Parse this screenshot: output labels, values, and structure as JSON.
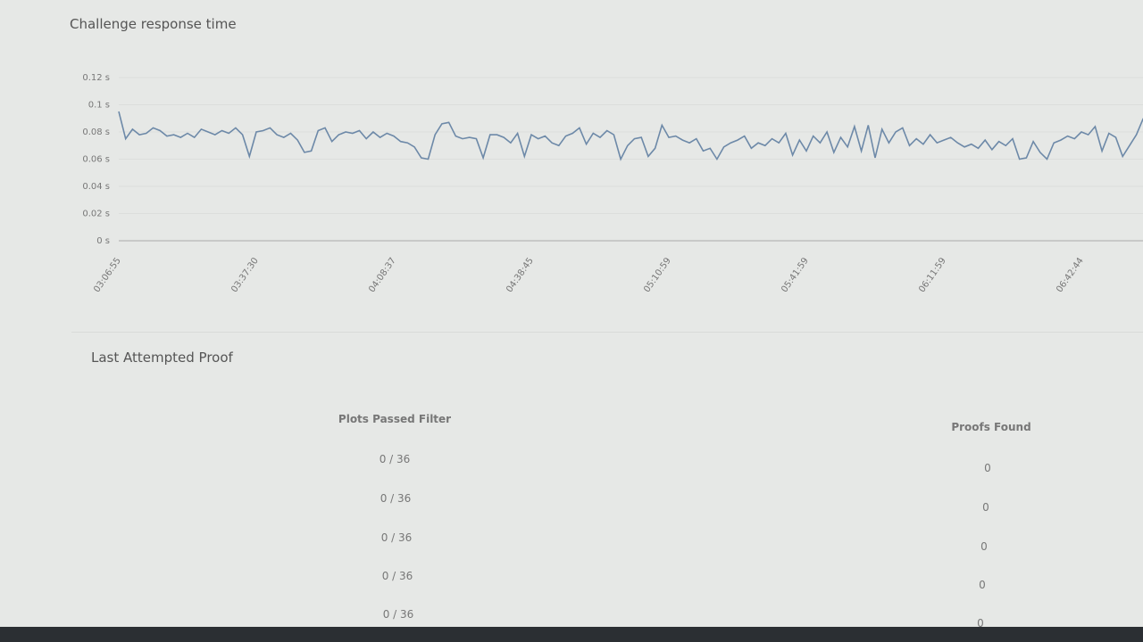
{
  "chart_data": {
    "type": "line",
    "title": "Challenge response time",
    "categories": [
      "03:06:55",
      null,
      null,
      null,
      null,
      null,
      null,
      null,
      null,
      null,
      null,
      null,
      null,
      null,
      null,
      null,
      null,
      null,
      null,
      null,
      "03:37:30",
      null,
      null,
      null,
      null,
      null,
      null,
      null,
      null,
      null,
      null,
      null,
      null,
      null,
      null,
      null,
      null,
      null,
      null,
      null,
      "04:08:37",
      null,
      null,
      null,
      null,
      null,
      null,
      null,
      null,
      null,
      null,
      null,
      null,
      null,
      null,
      null,
      null,
      null,
      null,
      null,
      "04:38:45",
      null,
      null,
      null,
      null,
      null,
      null,
      null,
      null,
      null,
      null,
      null,
      null,
      null,
      null,
      null,
      null,
      null,
      null,
      null,
      "05:10:59",
      null,
      null,
      null,
      null,
      null,
      null,
      null,
      null,
      null,
      null,
      null,
      null,
      null,
      null,
      null,
      null,
      null,
      null,
      null,
      "05:41:59",
      null,
      null,
      null,
      null,
      null,
      null,
      null,
      null,
      null,
      null,
      null,
      null,
      null,
      null,
      null,
      null,
      null,
      null,
      null,
      "06:11:59",
      null,
      null,
      null,
      null,
      null,
      null,
      null,
      null,
      null,
      null,
      null,
      null,
      null,
      null,
      null,
      null,
      null,
      null,
      null,
      "06:42:44",
      null,
      null,
      null,
      null,
      null,
      null,
      null,
      null,
      null
    ],
    "series": [
      {
        "color": "#6d89a8",
        "values": [
          0.095,
          0.075,
          0.082,
          0.078,
          0.079,
          0.083,
          0.081,
          0.077,
          0.078,
          0.076,
          0.079,
          0.076,
          0.082,
          0.08,
          0.078,
          0.081,
          0.079,
          0.083,
          0.078,
          0.062,
          0.08,
          0.081,
          0.083,
          0.078,
          0.076,
          0.079,
          0.074,
          0.065,
          0.066,
          0.081,
          0.083,
          0.073,
          0.078,
          0.08,
          0.079,
          0.081,
          0.075,
          0.08,
          0.076,
          0.079,
          0.077,
          0.073,
          0.072,
          0.069,
          0.061,
          0.06,
          0.078,
          0.086,
          0.087,
          0.077,
          0.075,
          0.076,
          0.075,
          0.061,
          0.078,
          0.078,
          0.076,
          0.072,
          0.079,
          0.062,
          0.078,
          0.075,
          0.077,
          0.072,
          0.07,
          0.077,
          0.079,
          0.083,
          0.071,
          0.079,
          0.076,
          0.081,
          0.078,
          0.06,
          0.07,
          0.075,
          0.076,
          0.062,
          0.068,
          0.085,
          0.076,
          0.077,
          0.074,
          0.072,
          0.075,
          0.066,
          0.068,
          0.06,
          0.069,
          0.072,
          0.074,
          0.077,
          0.068,
          0.072,
          0.07,
          0.075,
          0.072,
          0.079,
          0.063,
          0.074,
          0.066,
          0.077,
          0.072,
          0.08,
          0.065,
          0.076,
          0.069,
          0.084,
          0.066,
          0.085,
          0.061,
          0.082,
          0.072,
          0.08,
          0.083,
          0.07,
          0.075,
          0.071,
          0.078,
          0.072,
          0.074,
          0.076,
          0.072,
          0.069,
          0.071,
          0.068,
          0.074,
          0.067,
          0.073,
          0.07,
          0.075,
          0.06,
          0.061,
          0.073,
          0.065,
          0.06,
          0.072,
          0.074,
          0.077,
          0.075,
          0.08,
          0.078,
          0.084,
          0.066,
          0.079,
          0.076,
          0.062,
          0.07,
          0.078,
          0.09
        ]
      }
    ],
    "ylim": [
      0,
      0.12
    ],
    "yticks": [
      {
        "value": 0,
        "label": "0 s"
      },
      {
        "value": 0.02,
        "label": "0.02 s"
      },
      {
        "value": 0.04,
        "label": "0.04 s"
      },
      {
        "value": 0.06,
        "label": "0.06 s"
      },
      {
        "value": 0.08,
        "label": "0.08 s"
      },
      {
        "value": 0.1,
        "label": "0.1 s"
      },
      {
        "value": 0.12,
        "label": "0.12 s"
      }
    ],
    "grid": true
  },
  "proof_table": {
    "title": "Last Attempted Proof",
    "columns": [
      "Plots Passed Filter",
      "Proofs Found"
    ],
    "rows": [
      [
        "0 / 36",
        0
      ],
      [
        "0 / 36",
        0
      ],
      [
        "0 / 36",
        0
      ],
      [
        "0 / 36",
        0
      ],
      [
        "0 / 36",
        0
      ]
    ]
  }
}
